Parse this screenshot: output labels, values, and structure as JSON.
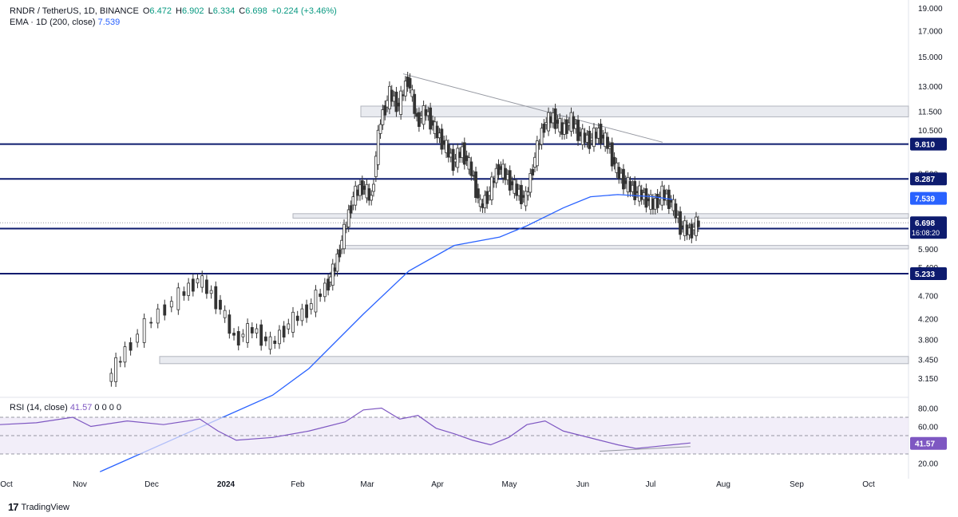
{
  "header": {
    "symbol": "RNDR / TetherUS, 1D, BINANCE",
    "open_label": "O",
    "open": "6.472",
    "high_label": "H",
    "high": "6.902",
    "low_label": "L",
    "low": "6.334",
    "close_label": "C",
    "close": "6.698",
    "change": "+0.224 (+3.46%)",
    "ema_label": "EMA · 1D (200, close)",
    "ema_value": "7.539"
  },
  "rsi_legend": {
    "label": "RSI (14, close)",
    "value": "41.57",
    "extra": "0 0 0 0"
  },
  "footer": {
    "brand": "TradingView"
  },
  "colors": {
    "up": "#089981",
    "down": "#f23645",
    "ema": "#2962ff",
    "level": "#0d1b6e",
    "rsi": "#7e57c2",
    "candle": "#333333"
  },
  "chart_data": {
    "type": "candlestick",
    "price_axis": {
      "scale": "log",
      "ticks": [
        "19.000",
        "17.000",
        "15.000",
        "13.000",
        "11.500",
        "10.500",
        "8.500",
        "5.900",
        "5.400",
        "4.700",
        "4.200",
        "3.800",
        "3.450",
        "3.150"
      ]
    },
    "time_axis": {
      "ticks": [
        "Oct",
        "Nov",
        "Dec",
        "2024",
        "Feb",
        "Mar",
        "Apr",
        "May",
        "Jun",
        "Jul",
        "Aug",
        "Sep",
        "Oct"
      ]
    },
    "horizontal_levels": [
      {
        "value": 9.81,
        "label": "9.810"
      },
      {
        "value": 8.287,
        "label": "8.287"
      },
      {
        "value": 6.51,
        "label": "6.510"
      },
      {
        "value": 5.233,
        "label": "5.233"
      }
    ],
    "price_badges": [
      {
        "value": 7.539,
        "label": "7.539",
        "kind": "ema"
      },
      {
        "value": 6.698,
        "label": "6.698",
        "sub": "16:08:20",
        "kind": "last"
      }
    ],
    "ema200": [
      [
        0.11,
        2.0
      ],
      [
        0.3,
        2.9
      ],
      [
        0.34,
        3.3
      ],
      [
        0.4,
        4.3
      ],
      [
        0.45,
        5.3
      ],
      [
        0.5,
        6.0
      ],
      [
        0.55,
        6.25
      ],
      [
        0.58,
        6.6
      ],
      [
        0.62,
        7.2
      ],
      [
        0.65,
        7.6
      ],
      [
        0.68,
        7.68
      ],
      [
        0.72,
        7.6
      ],
      [
        0.74,
        7.5
      ]
    ],
    "ohlc_path": [
      [
        0.12,
        3.1
      ],
      [
        0.14,
        3.6
      ],
      [
        0.17,
        4.2
      ],
      [
        0.2,
        4.7
      ],
      [
        0.22,
        5.1
      ],
      [
        0.24,
        4.6
      ],
      [
        0.26,
        3.8
      ],
      [
        0.28,
        4.0
      ],
      [
        0.3,
        3.7
      ],
      [
        0.32,
        4.1
      ],
      [
        0.34,
        4.4
      ],
      [
        0.36,
        4.9
      ],
      [
        0.37,
        5.4
      ],
      [
        0.38,
        6.4
      ],
      [
        0.39,
        7.6
      ],
      [
        0.4,
        8.0
      ],
      [
        0.41,
        7.5
      ],
      [
        0.42,
        11.0
      ],
      [
        0.43,
        12.5
      ],
      [
        0.44,
        11.8
      ],
      [
        0.45,
        13.5
      ],
      [
        0.46,
        11.0
      ],
      [
        0.47,
        11.5
      ],
      [
        0.48,
        10.5
      ],
      [
        0.49,
        9.8
      ],
      [
        0.5,
        9.0
      ],
      [
        0.51,
        9.5
      ],
      [
        0.52,
        8.6
      ],
      [
        0.53,
        7.2
      ],
      [
        0.54,
        7.8
      ],
      [
        0.55,
        8.8
      ],
      [
        0.56,
        8.3
      ],
      [
        0.57,
        7.8
      ],
      [
        0.58,
        7.5
      ],
      [
        0.59,
        9.2
      ],
      [
        0.6,
        10.8
      ],
      [
        0.61,
        11.2
      ],
      [
        0.62,
        10.5
      ],
      [
        0.63,
        11.0
      ],
      [
        0.64,
        10.2
      ],
      [
        0.65,
        10.0
      ],
      [
        0.66,
        10.4
      ],
      [
        0.67,
        9.8
      ],
      [
        0.68,
        8.6
      ],
      [
        0.69,
        8.1
      ],
      [
        0.7,
        7.8
      ],
      [
        0.71,
        7.6
      ],
      [
        0.72,
        7.3
      ],
      [
        0.73,
        7.7
      ],
      [
        0.74,
        7.4
      ],
      [
        0.75,
        6.6
      ],
      [
        0.76,
        6.4
      ],
      [
        0.77,
        6.7
      ]
    ],
    "rsi": {
      "ticks": [
        "80.00",
        "60.00",
        "20.00"
      ],
      "current": 41.57,
      "bands": {
        "upper": 70,
        "middle": 50,
        "lower": 30
      },
      "path": [
        [
          0.0,
          62
        ],
        [
          0.04,
          64
        ],
        [
          0.08,
          70
        ],
        [
          0.1,
          60
        ],
        [
          0.14,
          66
        ],
        [
          0.18,
          62
        ],
        [
          0.22,
          68
        ],
        [
          0.24,
          55
        ],
        [
          0.26,
          45
        ],
        [
          0.3,
          48
        ],
        [
          0.34,
          55
        ],
        [
          0.38,
          65
        ],
        [
          0.4,
          78
        ],
        [
          0.42,
          80
        ],
        [
          0.44,
          68
        ],
        [
          0.46,
          72
        ],
        [
          0.48,
          58
        ],
        [
          0.5,
          52
        ],
        [
          0.52,
          45
        ],
        [
          0.54,
          40
        ],
        [
          0.56,
          48
        ],
        [
          0.58,
          62
        ],
        [
          0.6,
          66
        ],
        [
          0.62,
          55
        ],
        [
          0.64,
          50
        ],
        [
          0.66,
          45
        ],
        [
          0.68,
          40
        ],
        [
          0.7,
          36
        ],
        [
          0.72,
          38
        ],
        [
          0.74,
          40
        ],
        [
          0.76,
          42
        ]
      ]
    }
  }
}
